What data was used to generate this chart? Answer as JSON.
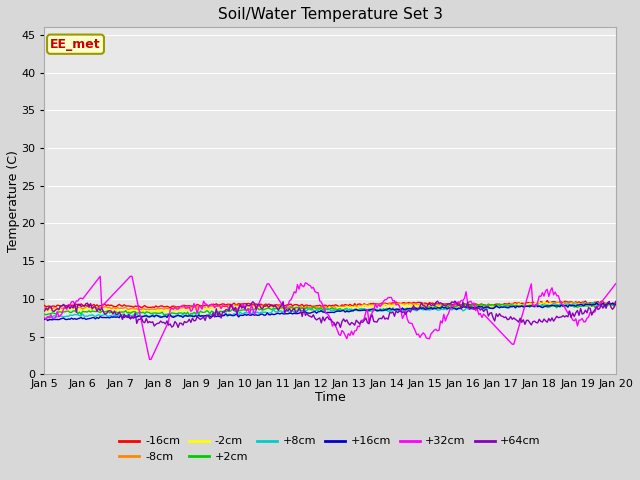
{
  "title": "Soil/Water Temperature Set 3",
  "xlabel": "Time",
  "ylabel": "Temperature (C)",
  "ylim": [
    0,
    46
  ],
  "yticks": [
    0,
    5,
    10,
    15,
    20,
    25,
    30,
    35,
    40,
    45
  ],
  "xlim": [
    0,
    15
  ],
  "xtick_labels": [
    "Jan 5",
    "Jan 6",
    "Jan 7",
    "Jan 8",
    "Jan 9",
    "Jan 10",
    "Jan 11",
    "Jan 12",
    "Jan 13",
    "Jan 14",
    "Jan 15",
    "Jan 16",
    "Jan 17",
    "Jan 18",
    "Jan 19",
    "Jan 20"
  ],
  "annotation_text": "EE_met",
  "annotation_color": "#cc0000",
  "annotation_bg": "#ffffcc",
  "annotation_border": "#999900",
  "series_colors": {
    "-16cm": "#ff0000",
    "-8cm": "#ff8800",
    "-2cm": "#ffff00",
    "+2cm": "#00cc00",
    "+8cm": "#00cccc",
    "+16cm": "#0000cc",
    "+32cm": "#ff00ff",
    "+64cm": "#8800bb"
  },
  "background_color": "#e8e8e8",
  "grid_color": "#ffffff",
  "fig_bg": "#d8d8d8",
  "title_fontsize": 11,
  "axis_fontsize": 9,
  "tick_fontsize": 8
}
